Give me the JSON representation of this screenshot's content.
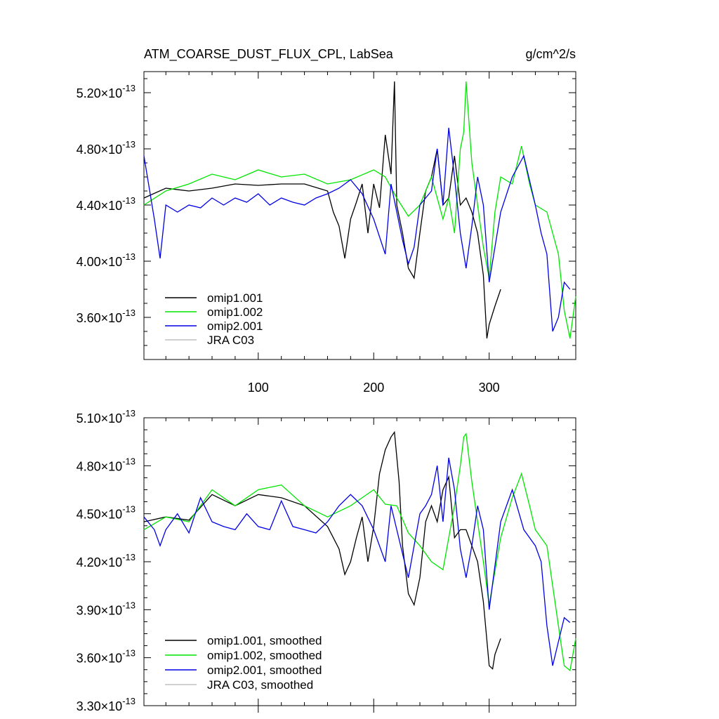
{
  "chart_data": [
    {
      "type": "line",
      "title": "ATM_COARSE_DUST_FLUX_CPL, LabSea",
      "units": "g/cm^2/s",
      "xlim": [
        1,
        375
      ],
      "ylim": [
        3.3,
        5.35
      ],
      "y_exponent": "-13",
      "x_ticks": [
        100,
        200,
        300
      ],
      "x_tick_labels": [
        "100",
        "200",
        "300"
      ],
      "y_ticks": [
        3.6,
        4.0,
        4.4,
        4.8,
        5.2
      ],
      "y_tick_labels": [
        "3.60",
        "4.00",
        "4.40",
        "4.80",
        "5.20"
      ],
      "legend_position": "bottom-left",
      "series": [
        {
          "name": "omip1.001",
          "color": "#000000",
          "x": [
            1,
            20,
            40,
            60,
            80,
            100,
            120,
            140,
            160,
            165,
            170,
            175,
            180,
            185,
            190,
            195,
            200,
            205,
            210,
            215,
            218,
            220,
            225,
            230,
            235,
            240,
            245,
            250,
            255,
            260,
            265,
            270,
            275,
            280,
            285,
            290,
            295,
            298,
            300,
            305,
            310
          ],
          "values": [
            4.45,
            4.52,
            4.5,
            4.52,
            4.55,
            4.54,
            4.55,
            4.55,
            4.5,
            4.35,
            4.25,
            4.02,
            4.3,
            4.42,
            4.55,
            4.2,
            4.55,
            4.38,
            4.9,
            4.62,
            5.28,
            4.4,
            4.2,
            3.95,
            3.88,
            4.2,
            4.5,
            4.6,
            4.8,
            4.4,
            4.45,
            4.75,
            4.4,
            4.45,
            4.35,
            4.2,
            3.9,
            3.45,
            3.55,
            3.68,
            3.8
          ]
        },
        {
          "name": "omip1.002",
          "color": "#00e600",
          "x": [
            1,
            20,
            40,
            60,
            80,
            100,
            120,
            140,
            160,
            180,
            200,
            210,
            220,
            230,
            240,
            250,
            260,
            265,
            270,
            275,
            278,
            280,
            285,
            290,
            295,
            300,
            305,
            310,
            320,
            328,
            335,
            340,
            350,
            355,
            360,
            365,
            370,
            375
          ],
          "values": [
            4.4,
            4.5,
            4.55,
            4.62,
            4.58,
            4.65,
            4.6,
            4.62,
            4.55,
            4.58,
            4.65,
            4.6,
            4.45,
            4.32,
            4.4,
            4.6,
            4.3,
            4.45,
            4.2,
            4.8,
            4.92,
            5.28,
            4.7,
            4.4,
            4.1,
            3.88,
            4.35,
            4.6,
            4.55,
            4.82,
            4.55,
            4.4,
            4.35,
            4.2,
            4.05,
            3.65,
            3.45,
            3.75
          ]
        },
        {
          "name": "omip2.001",
          "color": "#0000e6",
          "x": [
            1,
            10,
            15,
            20,
            30,
            40,
            50,
            60,
            70,
            80,
            90,
            100,
            110,
            120,
            130,
            140,
            150,
            160,
            170,
            180,
            190,
            200,
            210,
            215,
            220,
            225,
            230,
            235,
            240,
            245,
            250,
            255,
            260,
            265,
            270,
            275,
            280,
            285,
            290,
            295,
            300,
            310,
            320,
            330,
            340,
            345,
            350,
            355,
            360,
            365,
            370
          ],
          "values": [
            4.75,
            4.3,
            4.02,
            4.4,
            4.35,
            4.4,
            4.38,
            4.45,
            4.4,
            4.45,
            4.42,
            4.48,
            4.4,
            4.45,
            4.42,
            4.4,
            4.45,
            4.48,
            4.52,
            4.58,
            4.48,
            4.3,
            4.05,
            4.55,
            4.35,
            4.15,
            3.98,
            4.1,
            4.4,
            4.45,
            4.5,
            4.8,
            4.4,
            4.95,
            4.6,
            4.2,
            3.95,
            4.25,
            4.6,
            4.4,
            3.85,
            4.35,
            4.6,
            4.75,
            4.4,
            4.2,
            4.05,
            3.5,
            3.6,
            3.85,
            3.8
          ]
        },
        {
          "name": "JRA C03",
          "color": "#c0c0c0",
          "x": [],
          "values": []
        }
      ]
    },
    {
      "type": "line",
      "xlim": [
        1,
        375
      ],
      "ylim": [
        3.3,
        5.1
      ],
      "y_exponent": "-13",
      "y_ticks": [
        3.3,
        3.6,
        3.9,
        4.2,
        4.5,
        4.8,
        5.1
      ],
      "y_tick_labels": [
        "3.30",
        "3.60",
        "3.90",
        "4.20",
        "4.50",
        "4.80",
        "5.10"
      ],
      "legend_position": "bottom-left",
      "series": [
        {
          "name": "omip1.001, smoothed",
          "color": "#000000",
          "x": [
            1,
            20,
            40,
            60,
            80,
            100,
            120,
            140,
            160,
            165,
            170,
            175,
            180,
            185,
            190,
            195,
            200,
            205,
            210,
            215,
            218,
            222,
            225,
            230,
            235,
            240,
            245,
            250,
            255,
            260,
            265,
            270,
            275,
            280,
            285,
            290,
            295,
            300,
            303,
            305,
            310
          ],
          "values": [
            4.45,
            4.48,
            4.46,
            4.62,
            4.55,
            4.62,
            4.6,
            4.55,
            4.42,
            4.35,
            4.28,
            4.12,
            4.2,
            4.35,
            4.48,
            4.2,
            4.42,
            4.75,
            4.9,
            4.98,
            5.01,
            4.7,
            4.3,
            4.0,
            3.93,
            4.1,
            4.45,
            4.55,
            4.45,
            4.65,
            4.73,
            4.35,
            4.4,
            4.4,
            4.3,
            4.2,
            3.95,
            3.55,
            3.53,
            3.62,
            3.72
          ]
        },
        {
          "name": "omip1.002, smoothed",
          "color": "#00e600",
          "x": [
            1,
            20,
            40,
            60,
            80,
            100,
            120,
            140,
            160,
            180,
            200,
            210,
            220,
            230,
            240,
            250,
            260,
            270,
            275,
            278,
            280,
            285,
            290,
            295,
            300,
            310,
            320,
            328,
            335,
            340,
            350,
            355,
            360,
            365,
            370,
            375
          ],
          "values": [
            4.4,
            4.48,
            4.45,
            4.65,
            4.55,
            4.65,
            4.68,
            4.55,
            4.48,
            4.55,
            4.65,
            4.56,
            4.55,
            4.38,
            4.3,
            4.2,
            4.15,
            4.55,
            4.8,
            4.98,
            5.0,
            4.7,
            4.45,
            4.2,
            3.93,
            4.35,
            4.6,
            4.75,
            4.55,
            4.4,
            4.3,
            4.05,
            3.8,
            3.55,
            3.52,
            3.72
          ]
        },
        {
          "name": "omip2.001, smoothed",
          "color": "#0000e6",
          "x": [
            1,
            10,
            15,
            20,
            30,
            40,
            50,
            60,
            70,
            80,
            90,
            100,
            110,
            120,
            130,
            140,
            150,
            160,
            170,
            180,
            190,
            200,
            210,
            215,
            220,
            225,
            230,
            235,
            240,
            245,
            250,
            255,
            260,
            265,
            270,
            275,
            280,
            285,
            290,
            295,
            300,
            310,
            320,
            330,
            340,
            345,
            350,
            355,
            360,
            365,
            370
          ],
          "values": [
            4.48,
            4.4,
            4.3,
            4.4,
            4.5,
            4.38,
            4.6,
            4.45,
            4.42,
            4.4,
            4.5,
            4.42,
            4.4,
            4.58,
            4.42,
            4.4,
            4.38,
            4.45,
            4.55,
            4.62,
            4.55,
            4.4,
            4.2,
            4.55,
            4.4,
            4.25,
            4.1,
            4.3,
            4.5,
            4.55,
            4.62,
            4.8,
            4.45,
            4.85,
            4.65,
            4.28,
            4.1,
            4.3,
            4.55,
            4.4,
            3.9,
            4.45,
            4.65,
            4.4,
            4.3,
            4.2,
            3.8,
            3.55,
            3.7,
            3.85,
            3.82
          ]
        },
        {
          "name": "JRA C03, smoothed",
          "color": "#c0c0c0",
          "x": [],
          "values": []
        }
      ]
    }
  ]
}
